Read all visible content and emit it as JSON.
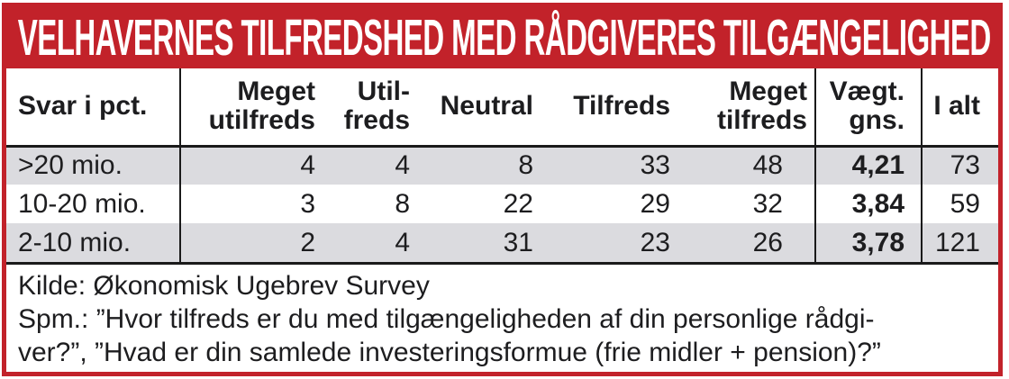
{
  "title": "VELHAVERNES TILFREDSHED MED RÅDGIVERES TILGÆNGELIGHED",
  "chart_data": {
    "type": "table",
    "title": "VELHAVERNES TILFREDSHED MED RÅDGIVERES TILGÆNGELIGHED",
    "unit_note": "Svar i pct.",
    "columns": [
      "Svar i pct.",
      "Meget\nutilfreds",
      "Util-\nfreds",
      "Neutral",
      "Tilfreds",
      "Meget\ntilfreds",
      "Vægt.\ngns.",
      "I alt"
    ],
    "rows": [
      [
        ">20 mio.",
        4,
        4,
        8,
        33,
        48,
        "4,21",
        73
      ],
      [
        "10-20 mio.",
        3,
        8,
        22,
        29,
        32,
        "3,84",
        59
      ],
      [
        "2-10 mio.",
        2,
        4,
        31,
        23,
        26,
        "3,78",
        121
      ]
    ]
  },
  "footer": {
    "line1": "Kilde: Økonomisk Ugebrev Survey",
    "line2": "Spm.: ”Hvor tilfreds er du med tilgængeligheden af din personlige rådgi-",
    "line3": "ver?”, ”Hvad er din samlede investeringsformue (frie midler + pension)?”"
  },
  "colors": {
    "accent_red": "#c2222a",
    "stripe_gray": "#dbdbdf",
    "rule_black": "#1a1a1a",
    "text": "#1d1d1f",
    "title_text": "#ffffff"
  }
}
